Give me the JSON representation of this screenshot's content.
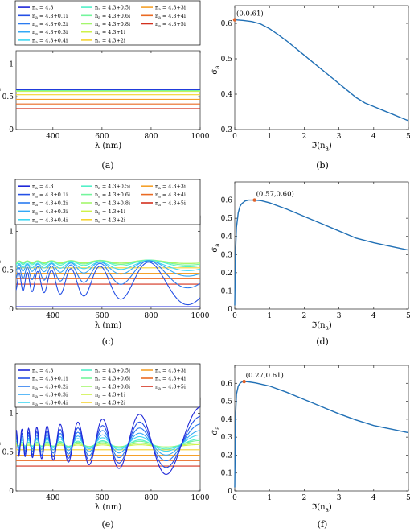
{
  "figure": {
    "captions": [
      "(a)",
      "(b)",
      "(c)",
      "(d)",
      "(e)",
      "(f)"
    ]
  },
  "chart_data": [
    {
      "panel": "a",
      "type": "line",
      "xlabel": "λ (nm)",
      "ylabel": "σ_a",
      "xlim": [
        250,
        1000
      ],
      "ylim": [
        0,
        1.2
      ],
      "xticks": [
        400,
        600,
        800,
        1000
      ],
      "yticks": [
        0,
        0.5,
        1
      ],
      "legend": {
        "placement": "above",
        "columns": 3,
        "entries": [
          {
            "label": "n_a = 4.3",
            "color": "#1e27d8"
          },
          {
            "label": "n_a = 4.3+0.1i",
            "color": "#2450e6"
          },
          {
            "label": "n_a = 4.3+0.2i",
            "color": "#2a7bf0"
          },
          {
            "label": "n_a = 4.3+0.3i",
            "color": "#33a8f6"
          },
          {
            "label": "n_a = 4.3+0.4i",
            "color": "#3fd7f2"
          },
          {
            "label": "n_a = 4.3+0.5i",
            "color": "#52f0c8"
          },
          {
            "label": "n_a = 4.3+0.6i",
            "color": "#74f59c"
          },
          {
            "label": "n_a = 4.3+0.8i",
            "color": "#a3f66c"
          },
          {
            "label": "n_a = 4.3+1i",
            "color": "#cff248"
          },
          {
            "label": "n_a = 4.3+2i",
            "color": "#f6d331"
          },
          {
            "label": "n_a = 4.3+3i",
            "color": "#f5a12a"
          },
          {
            "label": "n_a = 4.3+4i",
            "color": "#ea6a22"
          },
          {
            "label": "n_a = 4.3+5i",
            "color": "#d3301d"
          }
        ]
      },
      "series_levels": [
        0.61,
        0.61,
        0.61,
        0.61,
        0.61,
        0.6,
        0.6,
        0.59,
        0.58,
        0.53,
        0.46,
        0.39,
        0.32
      ],
      "oscillation": null
    },
    {
      "panel": "b",
      "type": "line",
      "xlabel": "ℑ(n_a)",
      "ylabel": "σ̄_a",
      "xlim": [
        0,
        5
      ],
      "ylim": [
        0.3,
        0.65
      ],
      "xticks": [
        0,
        1,
        2,
        3,
        4,
        5
      ],
      "yticks": [
        0.3,
        0.4,
        0.5,
        0.6
      ],
      "x": [
        0,
        0.25,
        0.5,
        0.75,
        1,
        1.25,
        1.5,
        1.75,
        2,
        2.25,
        2.5,
        2.75,
        3,
        3.25,
        3.5,
        3.75,
        4,
        4.25,
        4.5,
        4.75,
        5
      ],
      "y": [
        0.61,
        0.608,
        0.605,
        0.598,
        0.585,
        0.568,
        0.55,
        0.53,
        0.51,
        0.49,
        0.47,
        0.45,
        0.43,
        0.41,
        0.39,
        0.375,
        0.365,
        0.355,
        0.345,
        0.335,
        0.325
      ],
      "annotation": {
        "x": 0,
        "y": 0.61,
        "text": "(0,0.61)"
      }
    },
    {
      "panel": "c",
      "type": "line",
      "xlabel": "λ (nm)",
      "ylabel": "σ_a",
      "xlim": [
        250,
        1000
      ],
      "ylim": [
        0,
        1.2
      ],
      "xticks": [
        400,
        600,
        800,
        1000
      ],
      "yticks": [
        0,
        0.5,
        1
      ],
      "legend_ref": 0,
      "series_levels": [
        0.03,
        0.35,
        0.46,
        0.53,
        0.56,
        0.59,
        0.6,
        0.61,
        0.6,
        0.53,
        0.46,
        0.39,
        0.32
      ],
      "oscillation": {
        "amplitudes": [
          0,
          0.22,
          0.14,
          0.08,
          0.05,
          0.035,
          0.025,
          0.018,
          0.01,
          0,
          0,
          0,
          0
        ],
        "period_scale": 1.1
      }
    },
    {
      "panel": "d",
      "type": "line",
      "xlabel": "ℑ(n_a)",
      "ylabel": "σ̄_a",
      "xlim": [
        0,
        5
      ],
      "ylim": [
        0,
        0.7
      ],
      "xticks": [
        0,
        1,
        2,
        3,
        4,
        5
      ],
      "yticks": [
        0,
        0.1,
        0.2,
        0.3,
        0.4,
        0.5,
        0.6
      ],
      "x": [
        0,
        0.02,
        0.05,
        0.1,
        0.15,
        0.2,
        0.3,
        0.4,
        0.57,
        0.75,
        1,
        1.5,
        2,
        2.5,
        3,
        3.5,
        4,
        4.5,
        5
      ],
      "y": [
        0.02,
        0.3,
        0.45,
        0.53,
        0.565,
        0.58,
        0.595,
        0.6,
        0.6,
        0.597,
        0.585,
        0.55,
        0.51,
        0.47,
        0.43,
        0.39,
        0.365,
        0.345,
        0.325
      ],
      "annotation": {
        "x": 0.57,
        "y": 0.6,
        "text": "(0.57,0.60)"
      }
    },
    {
      "panel": "e",
      "type": "line",
      "xlabel": "λ (nm)",
      "ylabel": "σ_a",
      "xlim": [
        250,
        1000
      ],
      "ylim": [
        0,
        1.2
      ],
      "xticks": [
        400,
        600,
        800,
        1000
      ],
      "yticks": [
        0,
        0.5,
        1
      ],
      "legend_ref": 0,
      "series_levels": [
        0.62,
        0.61,
        0.61,
        0.61,
        0.61,
        0.6,
        0.6,
        0.59,
        0.58,
        0.53,
        0.46,
        0.39,
        0.32
      ],
      "oscillation": {
        "amplitudes": [
          0.33,
          0.25,
          0.18,
          0.12,
          0.08,
          0.05,
          0.035,
          0.02,
          0.012,
          0,
          0,
          0,
          0
        ],
        "period_scale": 1.4
      }
    },
    {
      "panel": "f",
      "type": "line",
      "xlabel": "ℑ(n_a)",
      "ylabel": "σ̄_a",
      "xlim": [
        0,
        5
      ],
      "ylim": [
        0,
        0.7
      ],
      "xticks": [
        0,
        1,
        2,
        3,
        4,
        5
      ],
      "yticks": [
        0,
        0.1,
        0.2,
        0.3,
        0.4,
        0.5,
        0.6
      ],
      "x": [
        0,
        0.02,
        0.05,
        0.1,
        0.15,
        0.2,
        0.27,
        0.4,
        0.6,
        1,
        1.5,
        2,
        2.5,
        3,
        3.5,
        4,
        4.5,
        5
      ],
      "y": [
        0.02,
        0.4,
        0.54,
        0.585,
        0.6,
        0.607,
        0.61,
        0.608,
        0.602,
        0.585,
        0.55,
        0.51,
        0.47,
        0.43,
        0.395,
        0.365,
        0.345,
        0.325
      ],
      "annotation": {
        "x": 0.27,
        "y": 0.61,
        "text": "(0.27,0.61)"
      }
    }
  ]
}
